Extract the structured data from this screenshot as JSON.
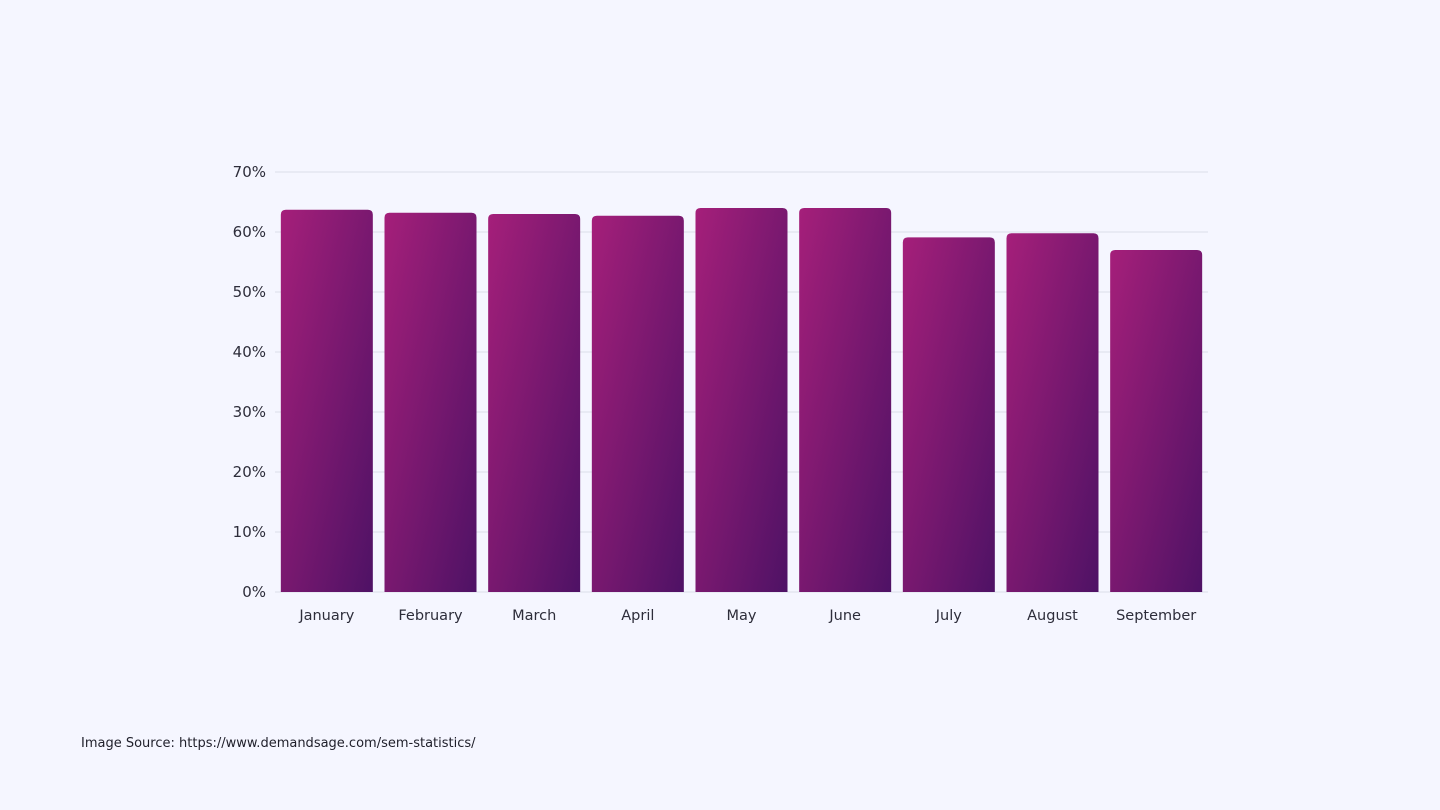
{
  "colors": {
    "background": "#f5f6ff",
    "bar_gradient_start": "#a51f7a",
    "bar_gradient_end": "#4e1265",
    "gridline": "#dcdde8",
    "text": "#2d2d3a"
  },
  "chart_data": {
    "type": "bar",
    "title": "",
    "xlabel": "",
    "ylabel": "",
    "categories": [
      "January",
      "February",
      "March",
      "April",
      "May",
      "June",
      "July",
      "August",
      "September"
    ],
    "values": [
      63.7,
      63.2,
      63.0,
      62.7,
      64.0,
      64.0,
      59.1,
      59.8,
      57.0
    ],
    "ylim": [
      0,
      70
    ],
    "yticks": [
      0,
      10,
      20,
      30,
      40,
      50,
      60,
      70
    ],
    "ytick_labels": [
      "0%",
      "10%",
      "20%",
      "30%",
      "40%",
      "50%",
      "60%",
      "70%"
    ],
    "grid": true,
    "legend": "none"
  },
  "footer": {
    "source_text": "Image Source: https://www.demandsage.com/sem-statistics/"
  }
}
